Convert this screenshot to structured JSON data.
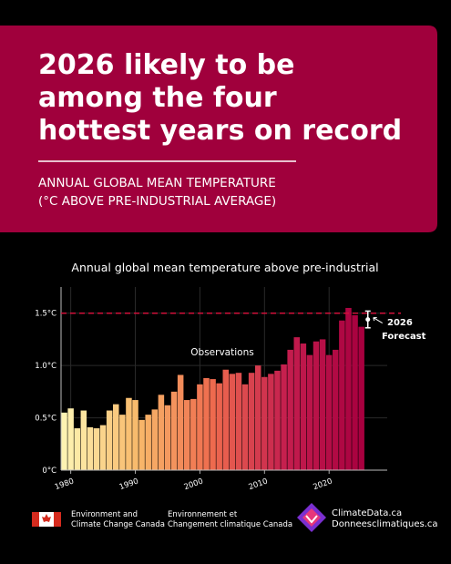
{
  "header": {
    "title": [
      "2026 likely to be",
      "among the four",
      "hottest years on record"
    ],
    "subtitle": [
      "ANNUAL GLOBAL MEAN TEMPERATURE",
      "(°C ABOVE PRE-INDUSTRIAL AVERAGE)"
    ]
  },
  "chart_data": {
    "type": "bar",
    "title": "Annual global mean temperature above pre-industrial",
    "x": [
      1979,
      1980,
      1981,
      1982,
      1983,
      1984,
      1985,
      1986,
      1987,
      1988,
      1989,
      1990,
      1991,
      1992,
      1993,
      1994,
      1995,
      1996,
      1997,
      1998,
      1999,
      2000,
      2001,
      2002,
      2003,
      2004,
      2005,
      2006,
      2007,
      2008,
      2009,
      2010,
      2011,
      2012,
      2013,
      2014,
      2015,
      2016,
      2017,
      2018,
      2019,
      2020,
      2021,
      2022,
      2023,
      2024,
      2025
    ],
    "values": [
      0.55,
      0.59,
      0.4,
      0.57,
      0.41,
      0.4,
      0.43,
      0.57,
      0.63,
      0.53,
      0.69,
      0.67,
      0.48,
      0.53,
      0.58,
      0.72,
      0.62,
      0.75,
      0.91,
      0.67,
      0.68,
      0.82,
      0.88,
      0.87,
      0.83,
      0.96,
      0.92,
      0.93,
      0.82,
      0.93,
      1.0,
      0.89,
      0.92,
      0.95,
      1.01,
      1.15,
      1.27,
      1.21,
      1.1,
      1.23,
      1.25,
      1.1,
      1.15,
      1.43,
      1.55,
      1.48,
      1.37
    ],
    "color_scale": [
      "#fdf3b2",
      "#f8b86a",
      "#ee6a4e",
      "#c41d4e",
      "#a8003f"
    ],
    "xlim": [
      1978.5,
      2029
    ],
    "xticks": [
      1980,
      1990,
      2000,
      2010,
      2020
    ],
    "ylim": [
      0,
      1.75
    ],
    "yticks": [
      {
        "value": 0,
        "label": "0°C"
      },
      {
        "value": 0.5,
        "label": "0.5°C"
      },
      {
        "value": 1.0,
        "label": "1.0°C"
      },
      {
        "value": 1.5,
        "label": "1.5°C"
      }
    ],
    "grid": true,
    "reference_line": {
      "value": 1.5,
      "color": "#d0103a"
    },
    "annotation": "Observations",
    "forecast": {
      "x": 2026,
      "value": 1.44,
      "error": 0.08,
      "label": [
        "2026",
        "Forecast"
      ]
    }
  },
  "footer": {
    "ec_en": [
      "Environment and",
      "Climate Change Canada"
    ],
    "ec_fr": [
      "Environnement et",
      "Changement climatique Canada"
    ],
    "site": [
      "ClimateData.ca",
      "Donneesclimatiques.ca"
    ]
  }
}
